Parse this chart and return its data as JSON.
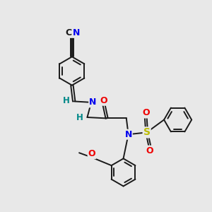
{
  "background_color": "#e8e8e8",
  "bond_color": "#1a1a1a",
  "bond_width": 1.4,
  "atom_colors": {
    "N": "#0000ee",
    "O": "#ee0000",
    "S": "#bbbb00",
    "H": "#008888",
    "C": "#1a1a1a"
  }
}
